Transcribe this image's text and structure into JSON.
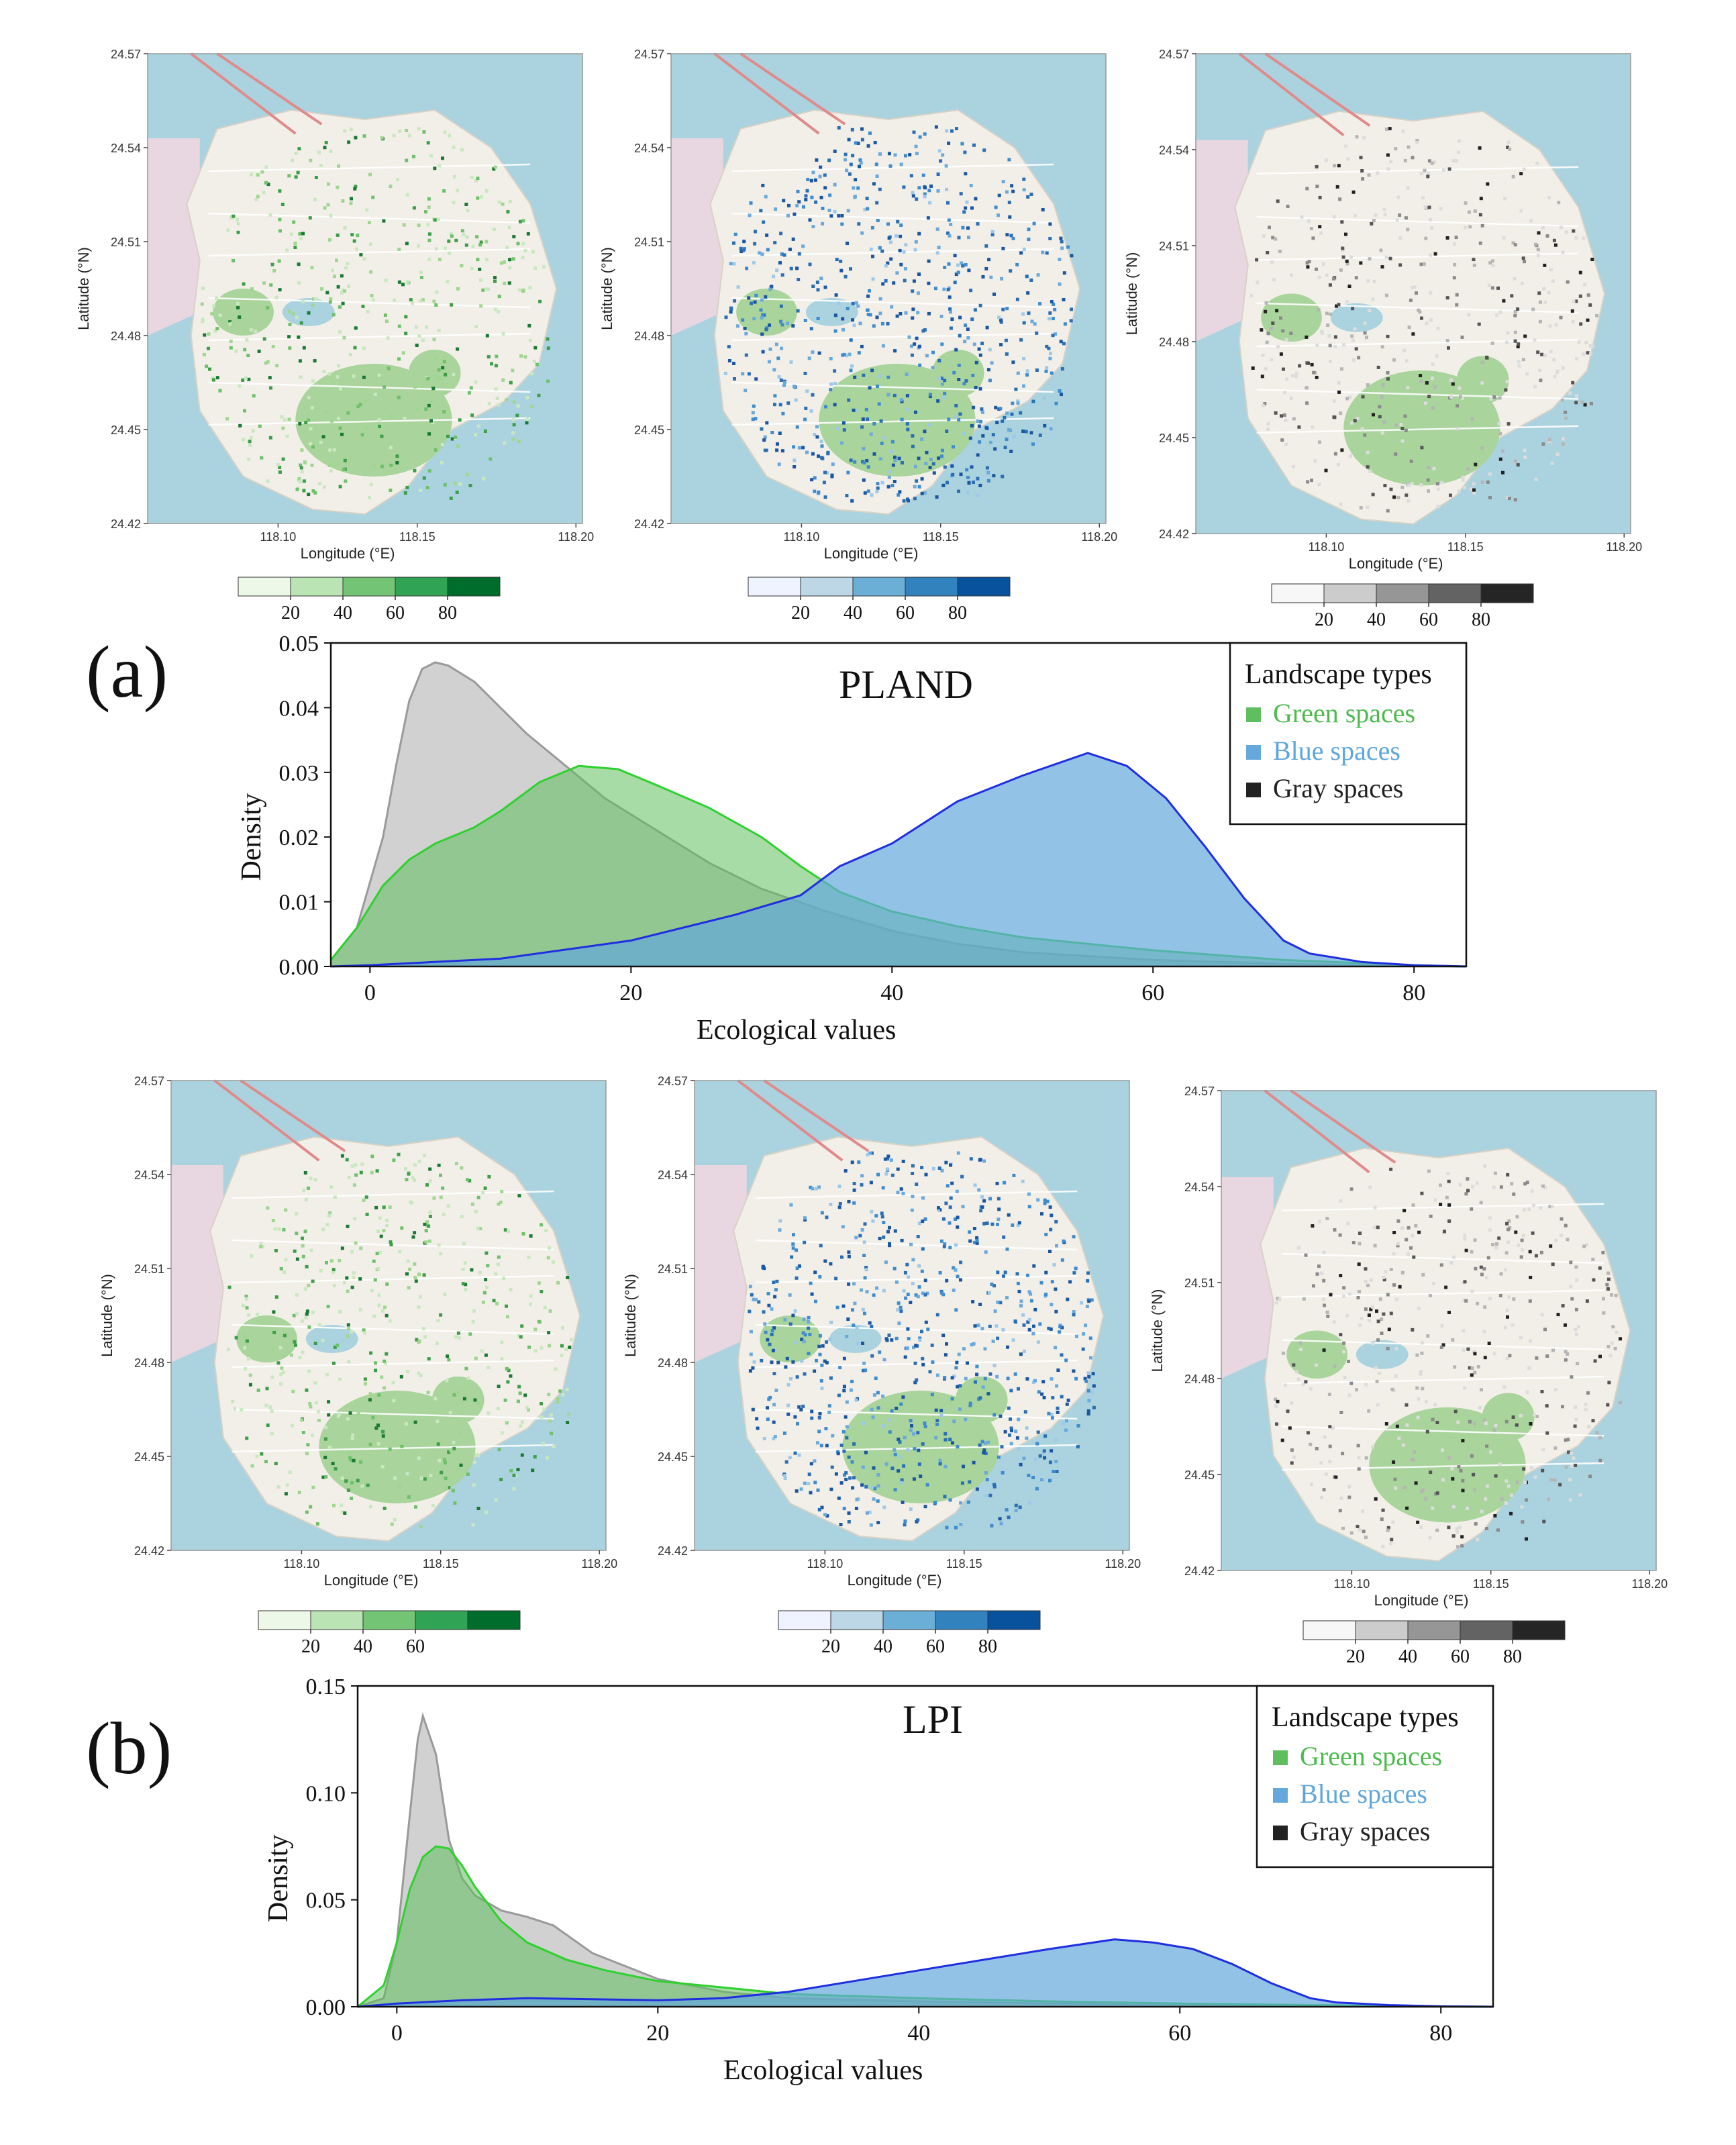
{
  "panel_labels": [
    "(a)",
    "(b)"
  ],
  "map_axes": {
    "xlabel": "Longitude (°E)",
    "ylabel": "Latitude (°N)",
    "x_ticks": [
      "118.10",
      "118.15",
      "118.20"
    ],
    "y_ticks": [
      "24.57",
      "24.54",
      "24.51",
      "24.48",
      "24.45",
      "24.42"
    ]
  },
  "colors": {
    "green": "#5fbf5f",
    "blue": "#64a8dc",
    "gray": "#9a9a9a",
    "green_line": "#2ed12e",
    "blue_line": "#1f2ee0",
    "gray_line": "#9a9a9a",
    "water": "#aad3df",
    "land": "#f2efe9",
    "park": "#a9d49b"
  },
  "colorbars": {
    "green": [
      "#edf8e9",
      "#bae4b3",
      "#74c476",
      "#31a354",
      "#006d2c"
    ],
    "blue": [
      "#eff3ff",
      "#bdd7e7",
      "#6baed6",
      "#3182bd",
      "#08519c"
    ],
    "gray": [
      "#f7f7f7",
      "#cccccc",
      "#969696",
      "#636363",
      "#252525"
    ]
  },
  "map_rows": [
    {
      "maps": [
        {
          "scheme": "green",
          "labels": [
            "20",
            "40",
            "60",
            "80"
          ]
        },
        {
          "scheme": "blue",
          "labels": [
            "20",
            "40",
            "60",
            "80"
          ]
        },
        {
          "scheme": "gray",
          "labels": [
            "20",
            "40",
            "60",
            "80"
          ]
        }
      ]
    },
    {
      "maps": [
        {
          "scheme": "green",
          "labels": [
            "20",
            "40",
            "60"
          ]
        },
        {
          "scheme": "blue",
          "labels": [
            "20",
            "40",
            "60",
            "80"
          ]
        },
        {
          "scheme": "gray",
          "labels": [
            "20",
            "40",
            "60",
            "80"
          ]
        }
      ]
    }
  ],
  "legend": {
    "title": "Landscape types",
    "items": [
      {
        "label": "Green spaces",
        "color": "#5fbf5f",
        "text_color": "#4cbb4c"
      },
      {
        "label": "Blue spaces",
        "color": "#64a8dc",
        "text_color": "#5ea6dc"
      },
      {
        "label": "Gray spaces",
        "color": "#222222",
        "text_color": "#222222"
      }
    ]
  },
  "chart_data": [
    {
      "type": "area",
      "title": "PLAND",
      "xlabel": "Ecological values",
      "ylabel": "Density",
      "xlim": [
        -3,
        84
      ],
      "ylim": [
        0,
        0.05
      ],
      "x_ticks": [
        0,
        20,
        40,
        60,
        80
      ],
      "y_ticks": [
        "0.00",
        "0.01",
        "0.02",
        "0.03",
        "0.04",
        "0.05"
      ],
      "legend_position": "top-right",
      "series": [
        {
          "name": "Gray spaces",
          "x": [
            -3,
            -1,
            1,
            2,
            3,
            4,
            5,
            6,
            8,
            10,
            12,
            15,
            18,
            22,
            26,
            30,
            35,
            40,
            45,
            50,
            60,
            70,
            80,
            84
          ],
          "y": [
            0.001,
            0.006,
            0.02,
            0.031,
            0.041,
            0.046,
            0.047,
            0.0465,
            0.044,
            0.04,
            0.036,
            0.031,
            0.026,
            0.021,
            0.016,
            0.012,
            0.0085,
            0.0055,
            0.0035,
            0.0022,
            0.001,
            0.0004,
            0.0001,
            0.0
          ]
        },
        {
          "name": "Green spaces",
          "x": [
            -3,
            -1,
            1,
            3,
            5,
            8,
            10,
            13,
            16,
            19,
            22,
            26,
            30,
            33,
            36,
            40,
            45,
            50,
            60,
            70,
            80,
            84
          ],
          "y": [
            0.001,
            0.006,
            0.0125,
            0.0165,
            0.019,
            0.0215,
            0.024,
            0.0285,
            0.031,
            0.0305,
            0.028,
            0.0245,
            0.02,
            0.0155,
            0.0115,
            0.0085,
            0.0062,
            0.0045,
            0.0025,
            0.001,
            0.0002,
            0.0
          ]
        },
        {
          "name": "Blue spaces",
          "x": [
            -3,
            0,
            10,
            20,
            28,
            33,
            36,
            40,
            45,
            50,
            55,
            58,
            61,
            64,
            67,
            70,
            72,
            76,
            80,
            84
          ],
          "y": [
            0.0,
            0.0002,
            0.0012,
            0.004,
            0.008,
            0.011,
            0.0155,
            0.019,
            0.0255,
            0.0295,
            0.033,
            0.031,
            0.026,
            0.0185,
            0.0105,
            0.004,
            0.002,
            0.0007,
            0.0002,
            0.0
          ]
        }
      ]
    },
    {
      "type": "area",
      "title": "LPI",
      "xlabel": "Ecological values",
      "ylabel": "Density",
      "xlim": [
        -3,
        84
      ],
      "ylim": [
        0,
        0.15
      ],
      "x_ticks": [
        0,
        20,
        40,
        60,
        80
      ],
      "y_ticks": [
        "0.00",
        "0.05",
        "0.10",
        "0.15"
      ],
      "legend_position": "top-right",
      "series": [
        {
          "name": "Gray spaces",
          "x": [
            -3,
            -1,
            0,
            1,
            1.6,
            2,
            3,
            4,
            5,
            6,
            8,
            10,
            12,
            15,
            20,
            25,
            30,
            40,
            50,
            60,
            70,
            80,
            84
          ],
          "y": [
            0.0,
            0.004,
            0.03,
            0.09,
            0.125,
            0.136,
            0.118,
            0.078,
            0.06,
            0.052,
            0.045,
            0.042,
            0.038,
            0.025,
            0.013,
            0.007,
            0.004,
            0.0025,
            0.0015,
            0.001,
            0.0004,
            0.0001,
            0.0
          ]
        },
        {
          "name": "Green spaces",
          "x": [
            -3,
            -1,
            0,
            1,
            2,
            3,
            4,
            5,
            6,
            8,
            10,
            13,
            16,
            20,
            25,
            30,
            40,
            50,
            60,
            70,
            80,
            84
          ],
          "y": [
            0.0,
            0.01,
            0.03,
            0.055,
            0.07,
            0.075,
            0.074,
            0.066,
            0.056,
            0.04,
            0.03,
            0.022,
            0.017,
            0.012,
            0.009,
            0.006,
            0.004,
            0.0025,
            0.0015,
            0.0008,
            0.0002,
            0.0
          ]
        },
        {
          "name": "Blue spaces",
          "x": [
            -3,
            0,
            5,
            10,
            15,
            20,
            25,
            30,
            35,
            40,
            45,
            50,
            55,
            58,
            61,
            64,
            67,
            70,
            72,
            76,
            80,
            84
          ],
          "y": [
            0.0,
            0.0015,
            0.003,
            0.004,
            0.0035,
            0.003,
            0.004,
            0.007,
            0.012,
            0.017,
            0.022,
            0.027,
            0.0315,
            0.03,
            0.027,
            0.02,
            0.011,
            0.004,
            0.002,
            0.0008,
            0.0002,
            0.0
          ]
        }
      ]
    }
  ]
}
